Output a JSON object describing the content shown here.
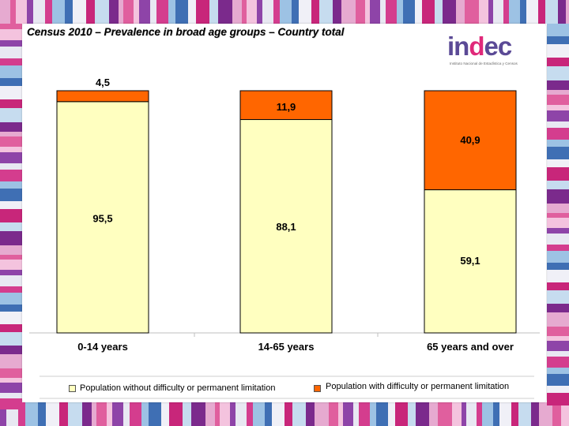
{
  "chart_data": {
    "type": "bar",
    "stacked": true,
    "title": "Census 2010 – Prevalence in broad age groups – Country total",
    "categories": [
      "0-14 years",
      "14-65 years",
      "65 years and over"
    ],
    "series": [
      {
        "name": "Population without difficulty or permanent limitation",
        "values": [
          95.5,
          88.1,
          59.1
        ],
        "labels": [
          "95,5",
          "88,1",
          "59,1"
        ],
        "color": "#ffffc0"
      },
      {
        "name": "Population with difficulty or permanent limitation",
        "values": [
          4.5,
          11.9,
          40.9
        ],
        "labels": [
          "4,5",
          "11,9",
          "40,9"
        ],
        "color": "#ff6600"
      }
    ],
    "ylim": [
      0,
      100
    ],
    "grid": false,
    "legend_position": "bottom"
  },
  "logo": {
    "word_part1": "in",
    "word_accent": "d",
    "word_part2": "ec",
    "subtitle": "Instituto Nacional de Estadística y Censos"
  }
}
